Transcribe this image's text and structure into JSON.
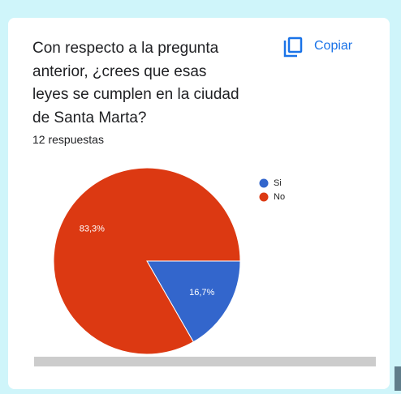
{
  "chart_data": {
    "type": "pie",
    "title": "Con respecto a la pregunta anterior, ¿crees que esas leyes se cumplen en la ciudad de Santa Marta?",
    "subtitle": "12 respuestas",
    "action": "Copiar",
    "categories": [
      "Si",
      "No"
    ],
    "values": [
      16.7,
      83.3
    ],
    "value_labels": [
      "16,7%",
      "83,3%"
    ],
    "colors": [
      "#3366cc",
      "#dc3912"
    ],
    "legend": "right"
  }
}
